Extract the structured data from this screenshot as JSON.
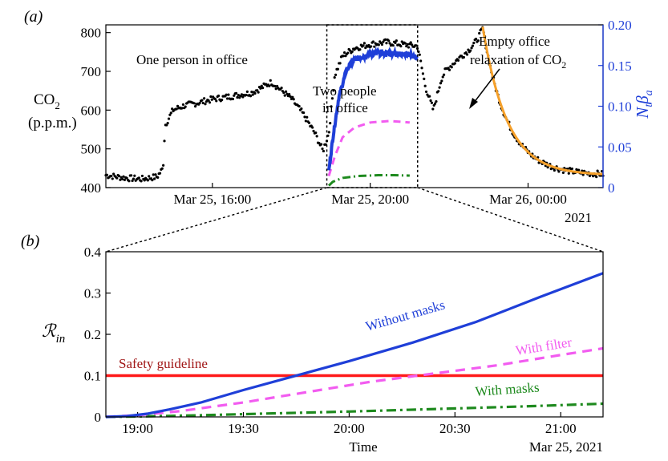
{
  "chart_data": [
    {
      "panel_label": "(a)",
      "type": "scatter",
      "ylabel_main": "CO",
      "ylabel_sub": "2",
      "ylabel_unit": "(p.p.m.)",
      "ylabel_right_main": "N",
      "ylabel_right_sub1": "t",
      "ylabel_right_beta": "β",
      "ylabel_right_sub2": "a",
      "ylim": [
        400,
        820
      ],
      "ylim_right": [
        0,
        0.2
      ],
      "xlim_hours": [
        13.3,
        25.9
      ],
      "x_tick_labels": [
        "Mar 25, 16:00",
        "Mar 25, 20:00",
        "Mar 26, 00:00"
      ],
      "x_ticks_hours": [
        16,
        20,
        24
      ],
      "year_label": "2021",
      "y_ticks": [
        400,
        500,
        600,
        700,
        800
      ],
      "y_ticks_right": [
        "0",
        "0.05",
        "0.10",
        "0.15",
        "0.20"
      ],
      "y_ticks_right_values": [
        0,
        0.05,
        0.1,
        0.15,
        0.2
      ],
      "annotations": {
        "one_person": "One person in office",
        "two_people_1": "Two people",
        "two_people_2": "in office",
        "empty_1": "Empty office",
        "empty_2": "relaxation of CO",
        "empty_2_sub": "2"
      },
      "highlight_box_hours": [
        18.9,
        21.2
      ],
      "co2_measured": {
        "hours": [
          13.3,
          13.8,
          14.2,
          14.6,
          14.75,
          14.8,
          15.0,
          15.3,
          15.6,
          16.0,
          16.5,
          17.0,
          17.5,
          18.0,
          18.3,
          18.6,
          18.8,
          18.95,
          19.1,
          19.3,
          19.6,
          20.0,
          20.4,
          20.8,
          21.2,
          21.4,
          21.6,
          21.8,
          21.9,
          22.2,
          22.5,
          22.7,
          22.85
        ],
        "values": [
          432,
          425,
          422,
          428,
          450,
          560,
          600,
          612,
          618,
          628,
          636,
          645,
          672,
          630,
          590,
          540,
          495,
          540,
          690,
          740,
          760,
          770,
          775,
          770,
          765,
          660,
          600,
          680,
          700,
          730,
          755,
          780,
          810
        ]
      },
      "relaxation_fit": {
        "start_hour": 22.85,
        "end_hour": 25.9,
        "start_value": 815,
        "asymptote": 432,
        "tau_hours": 0.62
      },
      "n_beta_model": {
        "hours": [
          18.95,
          19.05,
          19.2,
          19.4,
          19.6,
          19.9,
          20.2,
          20.6,
          21.0,
          21.2
        ],
        "values": [
          0.02,
          0.06,
          0.11,
          0.145,
          0.157,
          0.163,
          0.165,
          0.165,
          0.163,
          0.16
        ]
      },
      "with_filter_dashed": {
        "hours": [
          18.95,
          19.1,
          19.3,
          19.6,
          20.0,
          20.5,
          21.0
        ],
        "values": [
          430,
          480,
          530,
          555,
          568,
          572,
          568
        ]
      },
      "with_masks_dashdot": {
        "hours": [
          18.95,
          19.05,
          19.3,
          19.7,
          20.2,
          20.6,
          21.0
        ],
        "values": [
          405,
          415,
          425,
          430,
          432,
          432,
          431
        ]
      }
    },
    {
      "panel_label": "(b)",
      "type": "line",
      "ylabel_main": "ℛ",
      "ylabel_sub": "in",
      "xlabel": "Time",
      "date_label": "Mar 25, 2021",
      "ylim": [
        0,
        0.4
      ],
      "xlim_hours": [
        18.85,
        21.2
      ],
      "y_ticks": [
        0,
        0.1,
        0.2,
        0.3,
        0.4
      ],
      "y_tick_labels": [
        "0",
        "0.1",
        "0.2",
        "0.3",
        "0.4"
      ],
      "x_ticks_hours": [
        19.0,
        19.5,
        20.0,
        20.5,
        21.0
      ],
      "x_tick_labels": [
        "19:00",
        "19:30",
        "20:00",
        "20:30",
        "21:00"
      ],
      "series": [
        {
          "name": "Without masks",
          "x": [
            18.85,
            18.95,
            19.05,
            19.15,
            19.3,
            19.5,
            19.7,
            20.0,
            20.3,
            20.6,
            20.9,
            21.2
          ],
          "y": [
            0,
            0.002,
            0.008,
            0.018,
            0.035,
            0.065,
            0.093,
            0.135,
            0.18,
            0.23,
            0.29,
            0.348
          ]
        },
        {
          "name": "With filter",
          "x": [
            18.85,
            19.0,
            19.2,
            19.5,
            19.8,
            20.1,
            20.4,
            20.7,
            21.0,
            21.2
          ],
          "y": [
            0,
            0.004,
            0.014,
            0.035,
            0.06,
            0.085,
            0.105,
            0.125,
            0.15,
            0.166
          ]
        },
        {
          "name": "With masks",
          "x": [
            18.85,
            19.0,
            19.3,
            19.6,
            20.0,
            20.4,
            20.8,
            21.2
          ],
          "y": [
            0,
            0.001,
            0.004,
            0.008,
            0.013,
            0.019,
            0.025,
            0.032
          ]
        },
        {
          "name": "Safety guideline",
          "x": [
            18.85,
            21.2
          ],
          "y": [
            0.1,
            0.1
          ]
        }
      ],
      "colors": {
        "without_masks": "#1f3fd8",
        "with_filter": "#f25cf0",
        "with_masks": "#1e8a1e",
        "safety": "#ff1a1a",
        "safety_label": "#a01515",
        "measured": "#000000",
        "fit": "#f5a02a",
        "right_axis": "#1f3fd8"
      }
    }
  ]
}
